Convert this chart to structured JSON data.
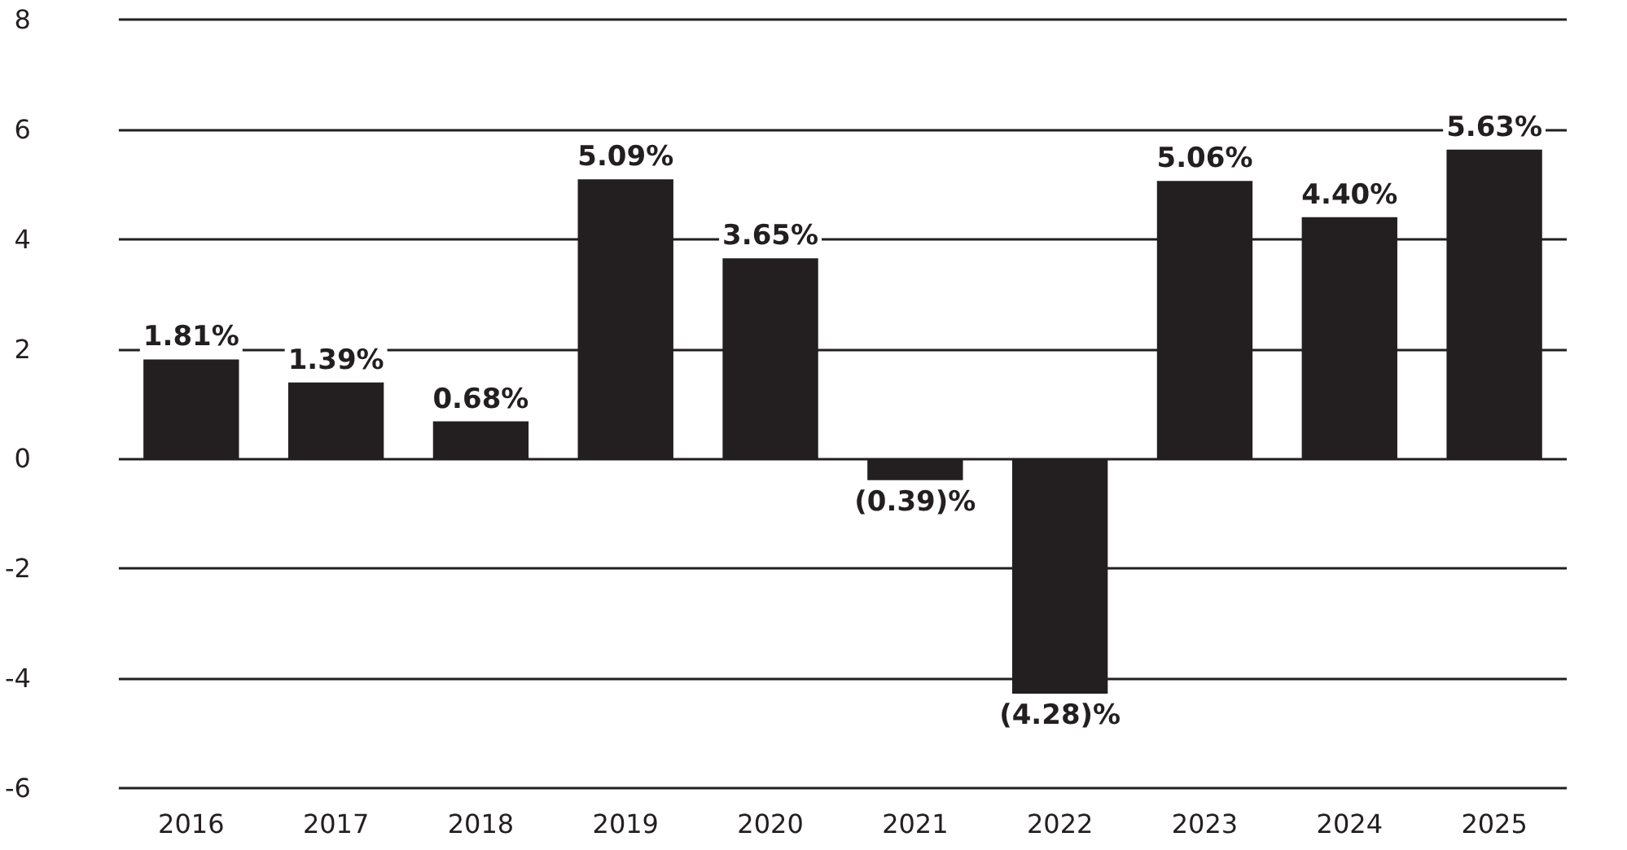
{
  "chart_data": {
    "type": "bar",
    "categories": [
      "2016",
      "2017",
      "2018",
      "2019",
      "2020",
      "2021",
      "2022",
      "2023",
      "2024",
      "2025"
    ],
    "values": [
      1.81,
      1.39,
      0.68,
      5.09,
      3.65,
      -0.39,
      -4.28,
      5.06,
      4.4,
      5.63
    ],
    "value_labels": [
      "1.81%",
      "1.39%",
      "0.68%",
      "5.09%",
      "3.65%",
      "(0.39)%",
      "(4.28)%",
      "5.06%",
      "4.40%",
      "5.63%"
    ],
    "color": "#231f20",
    "ylim": [
      -6,
      8
    ],
    "yticks": [
      -6,
      -4,
      -2,
      0,
      2,
      4,
      6,
      8
    ],
    "grid": "y"
  }
}
